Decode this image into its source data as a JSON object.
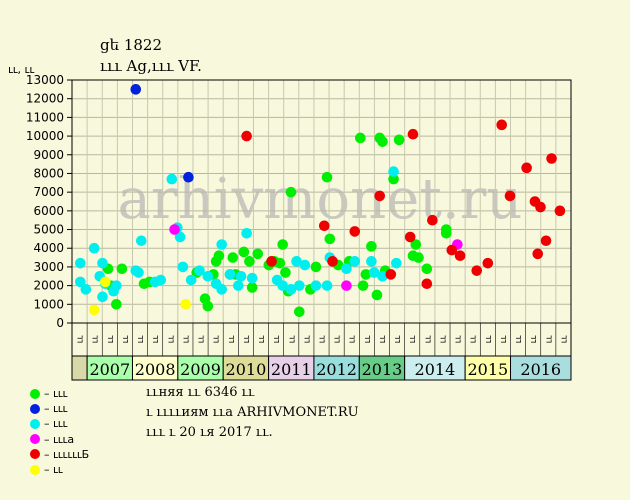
{
  "title": "ցե 1822",
  "subtitle": "ւււ Ag,ւււ VF.",
  "watermark": "arhivmonet.ru",
  "info_lines": [
    "ււняя ււ 6346 ււ",
    "ւ ււււиям ււа ARHIVMONET.RU",
    "ւււ ւ 20 ւя 2017 ււ."
  ],
  "legend": [
    {
      "label": "– ւււ",
      "color": "#00ee00"
    },
    {
      "label": "– ւււ",
      "color": "#0022dd"
    },
    {
      "label": "– ւււ",
      "color": "#00eeee"
    },
    {
      "label": "– ւււа",
      "color": "#ff00ff"
    },
    {
      "label": "– ււււււБ",
      "color": "#ee0000"
    },
    {
      "label": "– ււ",
      "color": "#ffff00"
    }
  ],
  "chart_data": {
    "type": "scatter",
    "ylabel": "ււ, ււ",
    "ylim": [
      0,
      13000
    ],
    "yticks": [
      0,
      1000,
      2000,
      3000,
      4000,
      5000,
      6000,
      7000,
      8000,
      9000,
      10000,
      11000,
      12000,
      13000
    ],
    "x_month_labels": [
      "ււ",
      "ււ",
      "ււ",
      "ււ",
      "ււ",
      "ււ",
      "ււ",
      "ււ",
      "ււ",
      "ււ",
      "ււ",
      "ււ",
      "ււ",
      "ււ",
      "ււ",
      "ււ",
      "ււ",
      "ււ",
      "ււ",
      "ււ",
      "ււ",
      "ււ",
      "ււ",
      "ււ",
      "ււ",
      "ււ",
      "ււ",
      "ււ",
      "ււ",
      "ււ",
      "ււ",
      "ււ",
      "ււ"
    ],
    "years": [
      {
        "label": "2007",
        "start": 1,
        "end": 4,
        "color": "#aaffaa"
      },
      {
        "label": "2008",
        "start": 4,
        "end": 7,
        "color": "#ffffcc"
      },
      {
        "label": "2009",
        "start": 7,
        "end": 10,
        "color": "#aaffaa"
      },
      {
        "label": "2010",
        "start": 10,
        "end": 13,
        "color": "#dddd99"
      },
      {
        "label": "2011",
        "start": 13,
        "end": 16,
        "color": "#e8d0e8"
      },
      {
        "label": "2012",
        "start": 16,
        "end": 19,
        "color": "#99dddd"
      },
      {
        "label": "2013",
        "start": 19,
        "end": 22,
        "color": "#66cc88"
      },
      {
        "label": "2014",
        "start": 22,
        "end": 26,
        "color": "#cceeee"
      },
      {
        "label": "2015",
        "start": 26,
        "end": 29,
        "color": "#ffffaa"
      },
      {
        "label": "2016",
        "start": 29,
        "end": 33,
        "color": "#aadddd"
      }
    ],
    "pre_band_color": "#d8d8a8",
    "series": [
      {
        "color": "#00ee00",
        "points": [
          [
            1.4,
            2000
          ],
          [
            1.6,
            1000
          ],
          [
            1.8,
            2900
          ],
          [
            1.3,
            2900
          ],
          [
            2.6,
            2100
          ],
          [
            2.8,
            2200
          ],
          [
            4.5,
            2700
          ],
          [
            4.8,
            1300
          ],
          [
            4.9,
            900
          ],
          [
            5.1,
            2600
          ],
          [
            5.2,
            3300
          ],
          [
            5.3,
            3600
          ],
          [
            5.7,
            2600
          ],
          [
            5.8,
            3500
          ],
          [
            5.9,
            2600
          ],
          [
            6.2,
            3800
          ],
          [
            6.4,
            3300
          ],
          [
            6.5,
            1900
          ],
          [
            6.7,
            3700
          ],
          [
            7.1,
            3100
          ],
          [
            7.3,
            3300
          ],
          [
            7.5,
            3200
          ],
          [
            7.6,
            4200
          ],
          [
            7.7,
            2700
          ],
          [
            7.8,
            1700
          ],
          [
            7.9,
            7000
          ],
          [
            8.2,
            600
          ],
          [
            8.6,
            1800
          ],
          [
            8.8,
            3000
          ],
          [
            9.2,
            7800
          ],
          [
            9.3,
            4500
          ],
          [
            9.6,
            3100
          ],
          [
            10.0,
            3300
          ],
          [
            10.4,
            9900
          ],
          [
            10.5,
            2000
          ],
          [
            10.6,
            2600
          ],
          [
            10.8,
            4100
          ],
          [
            11.0,
            1500
          ],
          [
            11.1,
            9900
          ],
          [
            11.2,
            9700
          ],
          [
            11.3,
            2800
          ],
          [
            11.6,
            7700
          ],
          [
            11.8,
            9800
          ],
          [
            12.3,
            3600
          ],
          [
            12.4,
            4200
          ],
          [
            12.5,
            3500
          ],
          [
            12.8,
            2900
          ],
          [
            13.5,
            5000
          ],
          [
            13.5,
            4800
          ]
        ]
      },
      {
        "color": "#0022dd",
        "points": [
          [
            2.3,
            12500
          ],
          [
            4.2,
            7800
          ]
        ]
      },
      {
        "color": "#00eeee",
        "points": [
          [
            0.3,
            2200
          ],
          [
            0.3,
            3200
          ],
          [
            0.5,
            1800
          ],
          [
            0.8,
            4000
          ],
          [
            1.0,
            2500
          ],
          [
            1.1,
            3200
          ],
          [
            1.1,
            1400
          ],
          [
            1.2,
            2100
          ],
          [
            1.5,
            1700
          ],
          [
            1.6,
            2000
          ],
          [
            2.3,
            2800
          ],
          [
            2.4,
            2700
          ],
          [
            2.5,
            4400
          ],
          [
            3.0,
            2200
          ],
          [
            3.2,
            2300
          ],
          [
            3.6,
            7700
          ],
          [
            3.8,
            5100
          ],
          [
            3.9,
            4600
          ],
          [
            4.0,
            3000
          ],
          [
            4.3,
            2300
          ],
          [
            4.6,
            2800
          ],
          [
            4.9,
            2500
          ],
          [
            5.2,
            2100
          ],
          [
            5.4,
            4200
          ],
          [
            5.4,
            1800
          ],
          [
            5.7,
            2600
          ],
          [
            6.0,
            2000
          ],
          [
            6.1,
            2500
          ],
          [
            6.3,
            4800
          ],
          [
            6.5,
            2400
          ],
          [
            7.4,
            2300
          ],
          [
            7.6,
            2000
          ],
          [
            7.9,
            1800
          ],
          [
            8.1,
            3300
          ],
          [
            8.2,
            2000
          ],
          [
            8.4,
            3100
          ],
          [
            8.8,
            2000
          ],
          [
            9.2,
            2000
          ],
          [
            9.3,
            3500
          ],
          [
            9.9,
            2900
          ],
          [
            10.2,
            3300
          ],
          [
            10.8,
            3300
          ],
          [
            10.9,
            2700
          ],
          [
            11.2,
            2500
          ],
          [
            11.6,
            8100
          ],
          [
            11.7,
            3200
          ]
        ]
      },
      {
        "color": "#ff00ff",
        "points": [
          [
            3.7,
            5000
          ],
          [
            9.9,
            2000
          ],
          [
            13.9,
            4200
          ]
        ]
      },
      {
        "color": "#ee0000",
        "points": [
          [
            6.3,
            10000
          ],
          [
            7.2,
            3300
          ],
          [
            9.1,
            5200
          ],
          [
            9.4,
            3300
          ],
          [
            10.2,
            4900
          ],
          [
            11.1,
            6800
          ],
          [
            11.5,
            2600
          ],
          [
            12.2,
            4600
          ],
          [
            12.3,
            10100
          ],
          [
            12.8,
            2100
          ],
          [
            13.0,
            5500
          ],
          [
            13.7,
            3900
          ],
          [
            14.0,
            3600
          ],
          [
            14.6,
            2800
          ],
          [
            15.0,
            3200
          ],
          [
            15.5,
            10600
          ],
          [
            15.8,
            6800
          ],
          [
            16.4,
            8300
          ],
          [
            16.7,
            6500
          ],
          [
            16.8,
            3700
          ],
          [
            16.9,
            6200
          ],
          [
            17.1,
            4400
          ],
          [
            17.3,
            8800
          ],
          [
            17.6,
            6000
          ]
        ]
      },
      {
        "color": "#ffff00",
        "points": [
          [
            0.8,
            700
          ],
          [
            1.2,
            2200
          ],
          [
            4.1,
            1000
          ]
        ]
      }
    ]
  }
}
